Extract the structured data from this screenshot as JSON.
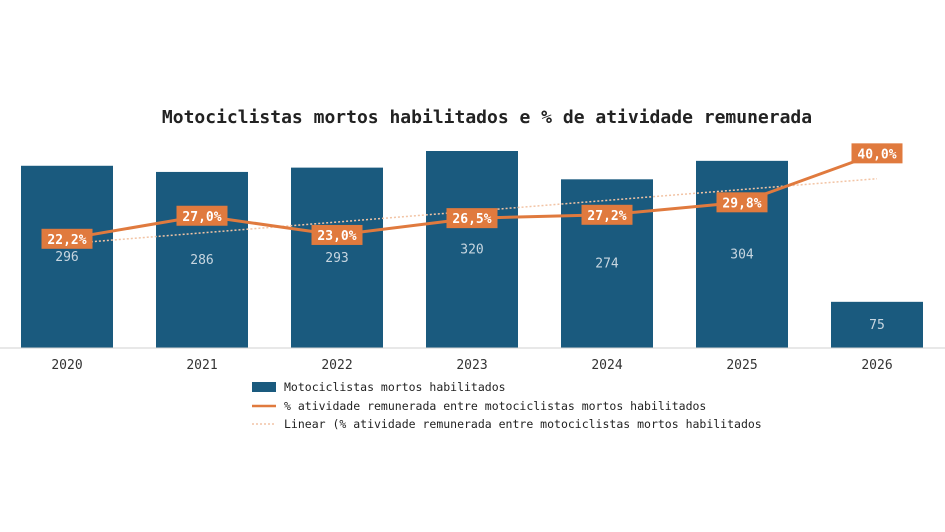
{
  "chart_data": {
    "type": "bar",
    "title": "Motociclistas mortos habilitados e % de atividade remunerada",
    "categories": [
      "2020",
      "2021",
      "2022",
      "2023",
      "2024",
      "2025",
      "2026"
    ],
    "series": [
      {
        "name": "Motociclistas mortos habilitados",
        "type": "bar",
        "values": [
          296,
          286,
          293,
          320,
          274,
          304,
          75
        ],
        "labels": [
          "296",
          "286",
          "293",
          "320",
          "274",
          "304",
          "75"
        ],
        "color": "#1a5a7e"
      },
      {
        "name": "% atividade remunerada entre motociclistas mortos habilitados",
        "type": "line",
        "values": [
          22.2,
          27.0,
          23.0,
          26.5,
          27.2,
          29.8,
          40.0
        ],
        "labels": [
          "22,2%",
          "27,0%",
          "23,0%",
          "26,5%",
          "27,2%",
          "29,8%",
          "40,0%"
        ],
        "color": "#e07a3e"
      },
      {
        "name": "Linear (% atividade remunerada entre motociclistas mortos habilitados",
        "type": "trendline",
        "color": "#f2c4a5"
      }
    ],
    "legend_position": "bottom",
    "grid": false
  }
}
